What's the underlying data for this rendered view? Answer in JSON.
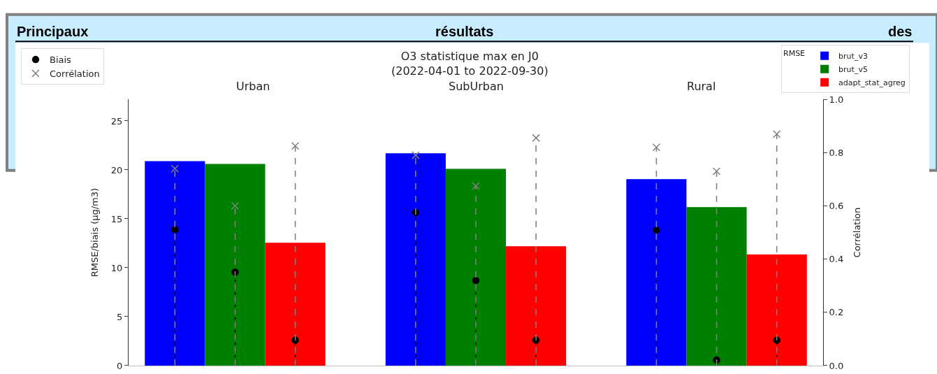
{
  "chart_data": {
    "type": "bar",
    "title": "O3 statistique max en J0\n(2022-04-01 to 2022-09-30)",
    "ylabel": "RMSE/biais (μg/m3)",
    "y2label": "Corrélation",
    "legend_title": "RMSE",
    "legend": "top",
    "annotations": [
      "Principaux résultats des",
      "Urban",
      "SubUrban",
      "Rural"
    ],
    "categories": [
      null,
      null,
      null,
      null,
      null,
      null,
      null,
      null,
      null,
      null,
      null
    ],
    "ylim": [
      0,
      27.2
    ],
    "yticks": [
      0,
      5,
      10,
      15,
      20,
      25
    ],
    "y2lim": [
      0,
      1.0
    ],
    "y2ticks": [
      {
        "value": 0,
        "label": "0.0"
      },
      {
        "value": 0.2,
        "label": "0.2"
      },
      {
        "value": 0.4,
        "label": "0.4"
      },
      {
        "value": 0.6,
        "label": "0.6"
      },
      {
        "value": 0.8,
        "label": "0.8"
      },
      {
        "value": 1.0,
        "label": "1.0"
      }
    ],
    "series": [
      {
        "name": "brut_v3",
        "color": "#0000ff",
        "values": [
          20.9,
          null,
          null,
          null,
          21.7,
          null,
          null,
          null,
          19.05,
          null,
          null
        ]
      },
      {
        "name": "brut_v5",
        "color": "#008000",
        "values": [
          null,
          20.6,
          null,
          null,
          null,
          20.1,
          null,
          null,
          null,
          16.2,
          null
        ]
      },
      {
        "name": "adapt_stat_agreg",
        "color": "#ff0000",
        "values": [
          null,
          null,
          12.55,
          null,
          null,
          null,
          12.2,
          null,
          null,
          null,
          11.35
        ]
      },
      {
        "type": "scatter",
        "name": "Biais",
        "color": "#000000",
        "marker": "circle",
        "line_style": "dotted",
        "values": [
          13.9,
          9.55,
          2.6,
          null,
          15.65,
          8.7,
          2.6,
          null,
          13.85,
          0.57,
          2.6
        ]
      },
      {
        "type": "scatter",
        "name": "Corrélation",
        "color": "#808080",
        "marker": "cross",
        "line_style": "dashed",
        "axis": "y2",
        "values": [
          0.74,
          0.6,
          0.825,
          null,
          0.79,
          0.675,
          0.855,
          null,
          0.82,
          0.73,
          0.87
        ]
      }
    ]
  }
}
